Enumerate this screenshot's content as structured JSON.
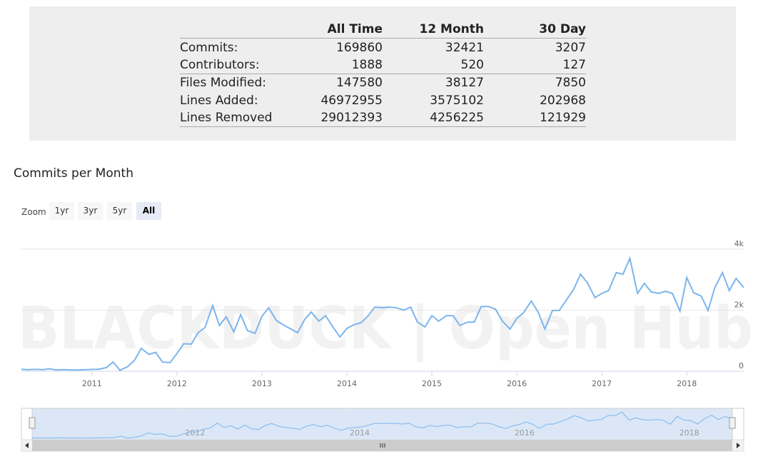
{
  "table": {
    "columns": [
      "All Time",
      "12 Month",
      "30 Day"
    ],
    "rows": [
      {
        "label": "Commits:",
        "values": [
          "169860",
          "32421",
          "3207"
        ]
      },
      {
        "label": "Contributors:",
        "values": [
          "1888",
          "520",
          "127"
        ]
      },
      {
        "label": "Files Modified:",
        "values": [
          "147580",
          "38127",
          "7850"
        ]
      },
      {
        "label": "Lines Added:",
        "values": [
          "46972955",
          "3575102",
          "202968"
        ]
      },
      {
        "label": "Lines Removed",
        "values": [
          "29012393",
          "4256225",
          "121929"
        ]
      }
    ]
  },
  "chart_data": {
    "type": "line",
    "title": "Commits per Month",
    "watermark": "BLACKDUCK | Open Hub",
    "zoom_label": "Zoom",
    "zoom_buttons": [
      "1yr",
      "3yr",
      "5yr",
      "All"
    ],
    "zoom_selected": "All",
    "x": [
      2010.17,
      2010.25,
      2010.33,
      2010.42,
      2010.5,
      2010.58,
      2010.67,
      2010.75,
      2010.83,
      2010.92,
      2011,
      2011.08,
      2011.17,
      2011.25,
      2011.33,
      2011.42,
      2011.5,
      2011.58,
      2011.67,
      2011.75,
      2011.83,
      2011.92,
      2012,
      2012.08,
      2012.17,
      2012.25,
      2012.33,
      2012.42,
      2012.5,
      2012.58,
      2012.67,
      2012.75,
      2012.83,
      2012.92,
      2013,
      2013.08,
      2013.17,
      2013.25,
      2013.33,
      2013.42,
      2013.5,
      2013.58,
      2013.67,
      2013.75,
      2013.83,
      2013.92,
      2014,
      2014.08,
      2014.17,
      2014.25,
      2014.33,
      2014.42,
      2014.5,
      2014.58,
      2014.67,
      2014.75,
      2014.83,
      2014.92,
      2015,
      2015.08,
      2015.17,
      2015.25,
      2015.33,
      2015.42,
      2015.5,
      2015.58,
      2015.67,
      2015.75,
      2015.83,
      2015.92,
      2016,
      2016.08,
      2016.17,
      2016.25,
      2016.33,
      2016.42,
      2016.5,
      2016.58,
      2016.67,
      2016.75,
      2016.83,
      2016.92,
      2017,
      2017.08,
      2017.17,
      2017.25,
      2017.33,
      2017.42,
      2017.5,
      2017.58,
      2017.67,
      2017.75,
      2017.83,
      2017.92,
      2018,
      2018.08,
      2018.17,
      2018.25,
      2018.33,
      2018.42,
      2018.5,
      2018.58,
      2018.67
    ],
    "series": [
      {
        "name": "Commits",
        "color": "#7cb5ec",
        "values": [
          60,
          50,
          60,
          50,
          80,
          40,
          50,
          40,
          40,
          50,
          60,
          60,
          120,
          300,
          30,
          150,
          350,
          750,
          550,
          620,
          300,
          280,
          580,
          900,
          890,
          1260,
          1430,
          2150,
          1500,
          1780,
          1290,
          1850,
          1330,
          1240,
          1800,
          2080,
          1660,
          1520,
          1400,
          1260,
          1680,
          1940,
          1640,
          1820,
          1470,
          1120,
          1400,
          1520,
          1590,
          1820,
          2100,
          2080,
          2100,
          2080,
          2000,
          2100,
          1610,
          1450,
          1820,
          1640,
          1820,
          1820,
          1500,
          1610,
          1610,
          2120,
          2120,
          2030,
          1640,
          1380,
          1730,
          1920,
          2300,
          1940,
          1380,
          1990,
          1990,
          2320,
          2690,
          3180,
          2900,
          2410,
          2550,
          2640,
          3230,
          3180,
          3700,
          2550,
          2880,
          2600,
          2550,
          2620,
          2550,
          1970,
          3070,
          2570,
          2460,
          1990,
          2740,
          3230,
          2640,
          3040,
          2740
        ]
      }
    ],
    "xlim": [
      2010.17,
      2018.67
    ],
    "xticks": [
      2011,
      2012,
      2013,
      2014,
      2015,
      2016,
      2017,
      2018
    ],
    "ylim": [
      0,
      4000
    ],
    "yticks": [
      0,
      {
        "value": 2000,
        "label": "2k"
      },
      {
        "value": 4000,
        "label": "4k"
      }
    ],
    "navigator_xticks": [
      2012,
      2014,
      2016,
      2018
    ],
    "grid": true
  }
}
